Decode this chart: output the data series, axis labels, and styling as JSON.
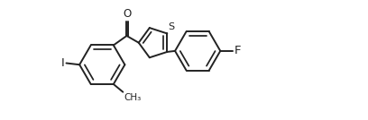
{
  "bg_color": "#ffffff",
  "line_color": "#222222",
  "line_width": 1.4,
  "font_size": 8.5,
  "label_I": "I",
  "label_F": "F",
  "label_O": "O",
  "label_S": "S",
  "figsize": [
    4.08,
    1.34
  ],
  "dpi": 100,
  "xlim": [
    -0.5,
    9.5
  ],
  "ylim": [
    -1.6,
    2.2
  ]
}
